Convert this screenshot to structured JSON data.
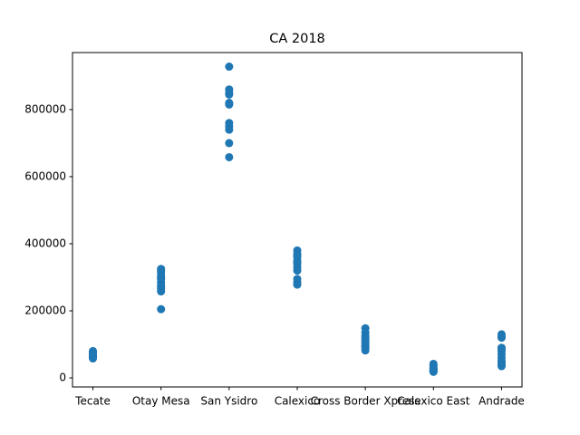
{
  "chart_data": {
    "type": "scatter",
    "title": "CA 2018",
    "categories": [
      "Tecate",
      "Otay Mesa",
      "San Ysidro",
      "Calexico",
      "Cross Border Xpress",
      "Calexico East",
      "Andrade"
    ],
    "values": [
      [
        60000,
        62000,
        65000,
        70000,
        75000,
        78000,
        80000,
        68000,
        63000,
        72000,
        58000,
        76000
      ],
      [
        205000,
        258000,
        265000,
        275000,
        285000,
        295000,
        305000,
        315000,
        320000,
        325000,
        270000,
        300000
      ],
      [
        928000,
        860000,
        850000,
        845000,
        820000,
        815000,
        760000,
        750000,
        740000,
        700000,
        658000,
        818000
      ],
      [
        380000,
        370000,
        360000,
        350000,
        340000,
        330000,
        320000,
        295000,
        285000,
        278000,
        365000,
        345000
      ],
      [
        148000,
        135000,
        125000,
        115000,
        105000,
        98000,
        92000,
        88000,
        82000,
        95000,
        110000,
        120000
      ],
      [
        42000,
        35000,
        28000,
        24000,
        20000,
        18000,
        22000,
        30000,
        25000,
        19000,
        38000,
        21000
      ],
      [
        130000,
        120000,
        90000,
        80000,
        70000,
        60000,
        50000,
        40000,
        35000,
        45000,
        85000,
        125000
      ]
    ],
    "color": "#1f77b4",
    "ylim": [
      -27000,
      970000
    ],
    "yticks": [
      0,
      200000,
      400000,
      600000,
      800000
    ],
    "grid": false
  }
}
